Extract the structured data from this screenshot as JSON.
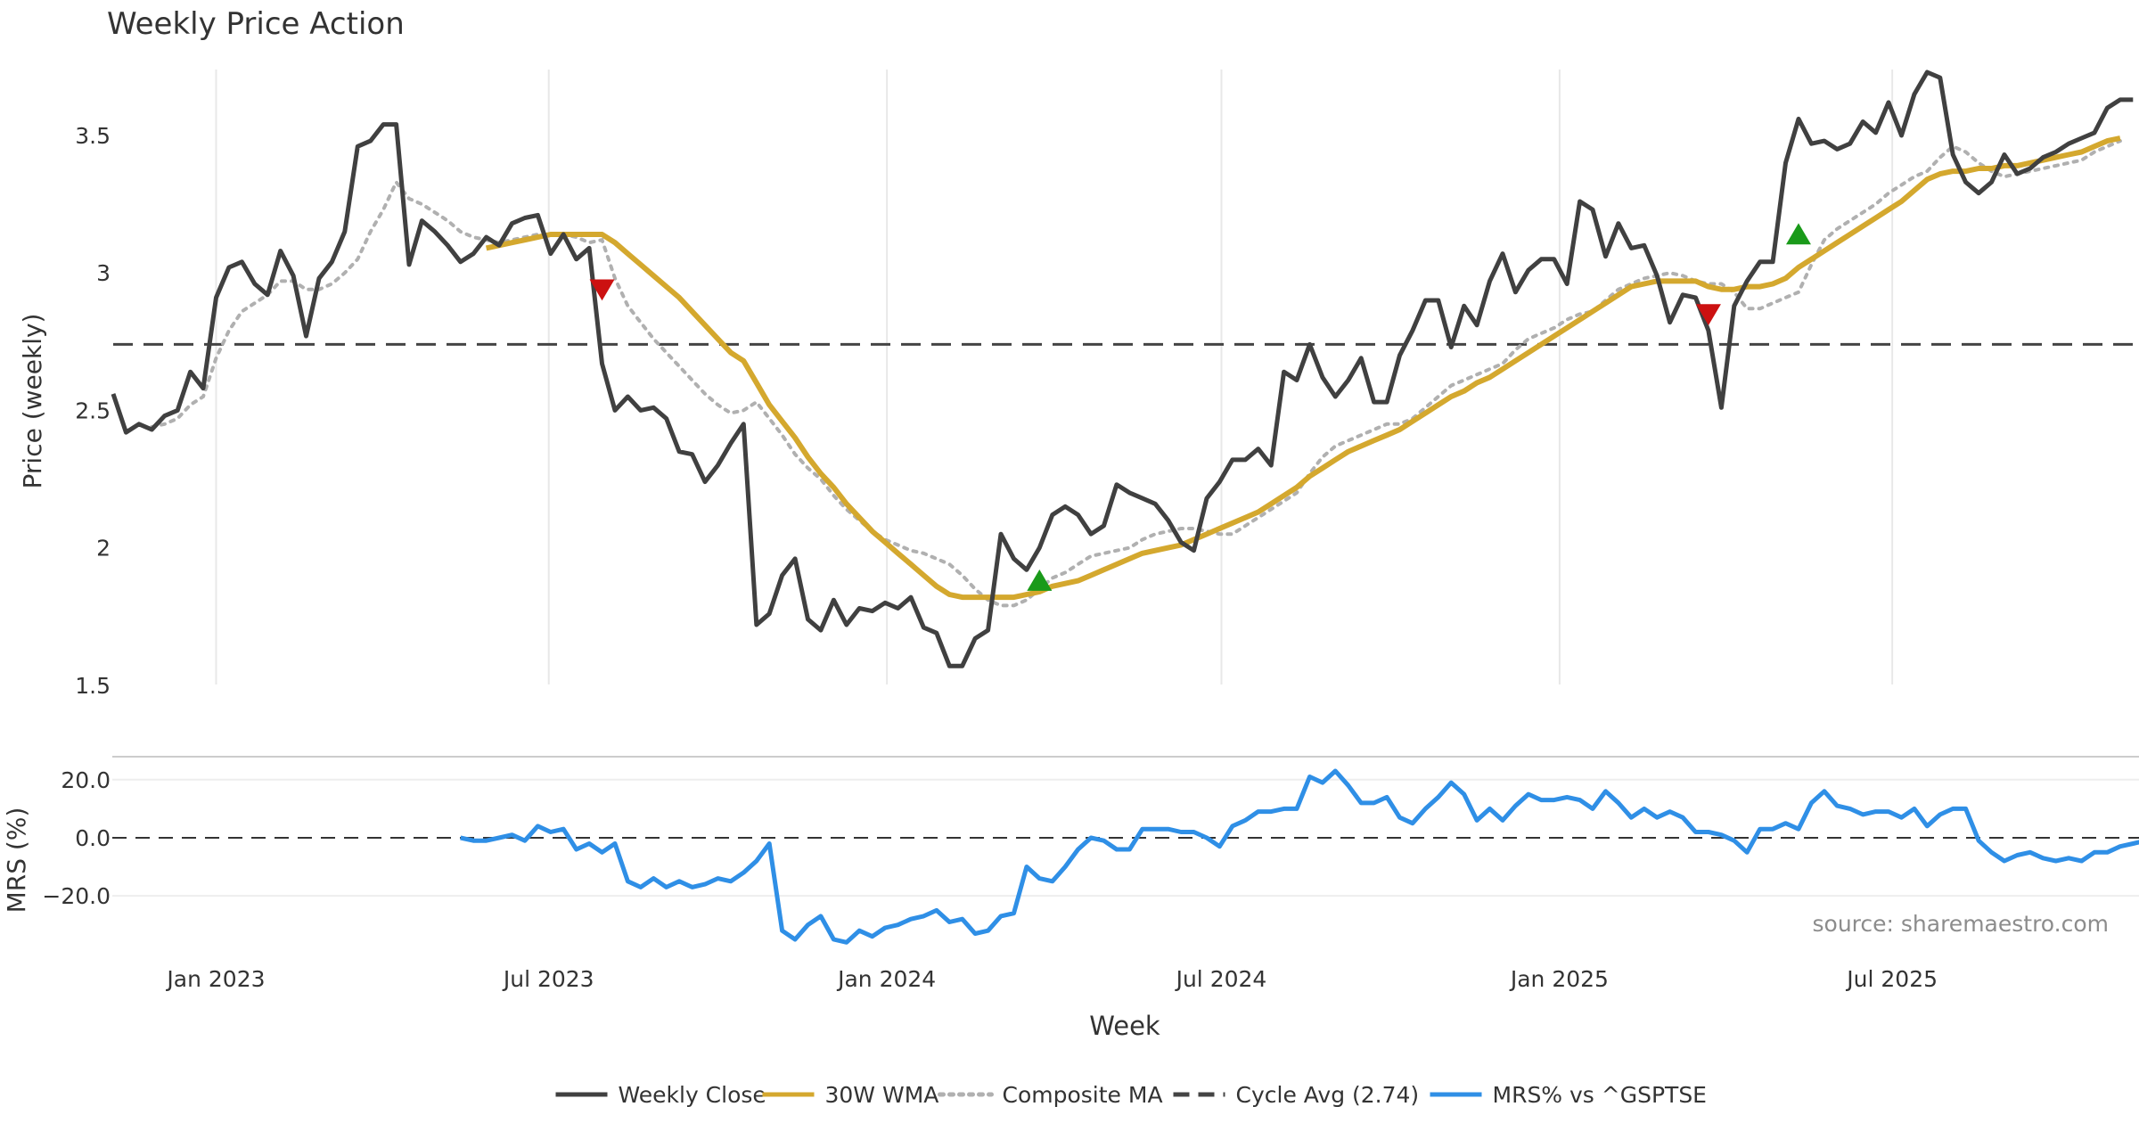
{
  "chart_data": {
    "type": "line",
    "title": "Weekly Price Action",
    "xlabel": "Week",
    "source_note": "source: sharemaestro.com",
    "x_ticks": [
      "Jan 2023",
      "Jul 2023",
      "Jan 2024",
      "Jul 2024",
      "Jan 2025",
      "Jul 2025"
    ],
    "legend_position": "bottom-center",
    "grid": "vertical",
    "price_panel": {
      "ylabel": "Price (weekly)",
      "ylim": [
        1.48,
        3.85
      ],
      "y_ticks": [
        "1.5",
        "2",
        "2.5",
        "3",
        "3.5"
      ],
      "x_start": "2022-11-06",
      "week_step": 7,
      "cycle_avg": 2.74,
      "series": [
        {
          "name": "Weekly Close",
          "color": "#404040",
          "values": [
            2.56,
            2.42,
            2.45,
            2.43,
            2.48,
            2.5,
            2.64,
            2.58,
            2.91,
            3.02,
            3.04,
            2.96,
            2.92,
            3.08,
            2.99,
            2.77,
            2.98,
            3.04,
            3.15,
            3.46,
            3.48,
            3.54,
            3.54,
            3.03,
            3.19,
            3.15,
            3.1,
            3.04,
            3.07,
            3.13,
            3.1,
            3.18,
            3.2,
            3.21,
            3.07,
            3.14,
            3.05,
            3.09,
            2.67,
            2.5,
            2.55,
            2.5,
            2.51,
            2.47,
            2.35,
            2.34,
            2.24,
            2.3,
            2.38,
            2.45,
            1.72,
            1.76,
            1.9,
            1.96,
            1.74,
            1.7,
            1.81,
            1.72,
            1.78,
            1.77,
            1.8,
            1.78,
            1.82,
            1.71,
            1.69,
            1.57,
            1.57,
            1.67,
            1.7,
            2.05,
            1.96,
            1.92,
            2.0,
            2.12,
            2.15,
            2.12,
            2.05,
            2.08,
            2.23,
            2.2,
            2.18,
            2.16,
            2.1,
            2.02,
            1.99,
            2.18,
            2.24,
            2.32,
            2.32,
            2.36,
            2.3,
            2.64,
            2.61,
            2.74,
            2.62,
            2.55,
            2.61,
            2.69,
            2.53,
            2.53,
            2.7,
            2.79,
            2.9,
            2.9,
            2.73,
            2.88,
            2.81,
            2.97,
            3.07,
            2.93,
            3.01,
            3.05,
            3.05,
            2.96,
            3.26,
            3.23,
            3.06,
            3.18,
            3.09,
            3.1,
            2.99,
            2.82,
            2.92,
            2.91,
            2.79,
            2.51,
            2.88,
            2.97,
            3.04,
            3.04,
            3.4,
            3.56,
            3.47,
            3.48,
            3.45,
            3.47,
            3.55,
            3.51,
            3.62,
            3.5,
            3.65,
            3.73,
            3.71,
            3.43,
            3.33,
            3.29,
            3.33,
            3.43,
            3.36,
            3.38,
            3.42,
            3.44,
            3.47,
            3.49,
            3.51,
            3.6,
            3.63,
            3.63
          ]
        },
        {
          "name": "30W WMA",
          "color": "#D4A82E",
          "start_index": 29,
          "values": [
            3.09,
            3.1,
            3.11,
            3.12,
            3.13,
            3.14,
            3.14,
            3.14,
            3.14,
            3.14,
            3.11,
            3.07,
            3.03,
            2.99,
            2.95,
            2.91,
            2.86,
            2.81,
            2.76,
            2.71,
            2.68,
            2.6,
            2.52,
            2.46,
            2.4,
            2.33,
            2.27,
            2.22,
            2.16,
            2.11,
            2.06,
            2.02,
            1.98,
            1.94,
            1.9,
            1.86,
            1.83,
            1.82,
            1.82,
            1.82,
            1.82,
            1.82,
            1.83,
            1.84,
            1.86,
            1.87,
            1.88,
            1.9,
            1.92,
            1.94,
            1.96,
            1.98,
            1.99,
            2.0,
            2.01,
            2.03,
            2.05,
            2.07,
            2.09,
            2.11,
            2.13,
            2.16,
            2.19,
            2.22,
            2.26,
            2.29,
            2.32,
            2.35,
            2.37,
            2.39,
            2.41,
            2.43,
            2.46,
            2.49,
            2.52,
            2.55,
            2.57,
            2.6,
            2.62,
            2.65,
            2.68,
            2.71,
            2.74,
            2.77,
            2.8,
            2.83,
            2.86,
            2.89,
            2.92,
            2.95,
            2.96,
            2.97,
            2.97,
            2.97,
            2.97,
            2.95,
            2.94,
            2.94,
            2.95,
            2.95,
            2.96,
            2.98,
            3.02,
            3.05,
            3.08,
            3.11,
            3.14,
            3.17,
            3.2,
            3.23,
            3.26,
            3.3,
            3.34,
            3.36,
            3.37,
            3.37,
            3.38,
            3.38,
            3.39,
            3.39,
            3.4,
            3.41,
            3.42,
            3.43,
            3.44,
            3.46,
            3.48,
            3.49
          ]
        },
        {
          "name": "Composite MA",
          "color": "#b0b0b0",
          "start_index": 3,
          "values": [
            2.44,
            2.45,
            2.47,
            2.52,
            2.55,
            2.69,
            2.79,
            2.86,
            2.89,
            2.92,
            2.97,
            2.97,
            2.94,
            2.94,
            2.96,
            3.0,
            3.05,
            3.15,
            3.23,
            3.33,
            3.27,
            3.25,
            3.22,
            3.19,
            3.15,
            3.13,
            3.12,
            3.11,
            3.12,
            3.13,
            3.14,
            3.14,
            3.14,
            3.13,
            3.11,
            3.12,
            2.98,
            2.88,
            2.82,
            2.76,
            2.71,
            2.66,
            2.61,
            2.56,
            2.52,
            2.49,
            2.5,
            2.53,
            2.47,
            2.41,
            2.34,
            2.29,
            2.25,
            2.19,
            2.14,
            2.1,
            2.06,
            2.03,
            2.01,
            1.99,
            1.98,
            1.96,
            1.94,
            1.9,
            1.85,
            1.81,
            1.79,
            1.79,
            1.81,
            1.85,
            1.89,
            1.91,
            1.94,
            1.97,
            1.98,
            1.99,
            2.0,
            2.03,
            2.05,
            2.06,
            2.07,
            2.07,
            2.06,
            2.05,
            2.05,
            2.08,
            2.11,
            2.14,
            2.17,
            2.2,
            2.27,
            2.33,
            2.37,
            2.39,
            2.41,
            2.43,
            2.45,
            2.45,
            2.47,
            2.51,
            2.55,
            2.59,
            2.61,
            2.63,
            2.65,
            2.67,
            2.72,
            2.76,
            2.78,
            2.8,
            2.83,
            2.85,
            2.86,
            2.9,
            2.94,
            2.96,
            2.98,
            2.99,
            3.0,
            2.99,
            2.97,
            2.96,
            2.96,
            2.93,
            2.87,
            2.87,
            2.89,
            2.91,
            2.93,
            3.03,
            3.12,
            3.16,
            3.19,
            3.22,
            3.25,
            3.29,
            3.32,
            3.35,
            3.37,
            3.42,
            3.46,
            3.44,
            3.4,
            3.37,
            3.35,
            3.36,
            3.37,
            3.38,
            3.39,
            3.4,
            3.41,
            3.44,
            3.46,
            3.48
          ]
        }
      ],
      "markers": [
        {
          "index": 38,
          "value": 2.94,
          "direction": "down",
          "color": "#cc1111"
        },
        {
          "index": 72,
          "value": 1.88,
          "direction": "up",
          "color": "#1a9a1a"
        },
        {
          "index": 124,
          "value": 2.85,
          "direction": "down",
          "color": "#cc1111"
        },
        {
          "index": 131,
          "value": 3.14,
          "direction": "up",
          "color": "#1a9a1a"
        }
      ]
    },
    "mrs_panel": {
      "ylabel": "MRS (%)",
      "ylim": [
        -35,
        27
      ],
      "y_ticks": [
        "20.0",
        "0.0",
        "−20.0"
      ],
      "series": [
        {
          "name": "MRS% vs ^GSPTSE",
          "color": "#2f8fe6",
          "start_index": 27,
          "values": [
            0,
            -1,
            -1,
            0,
            1,
            -1,
            4,
            2,
            3,
            -4,
            -2,
            -5,
            -2,
            -15,
            -17,
            -14,
            -17,
            -15,
            -17,
            -16,
            -14,
            -15,
            -12,
            -8,
            -2,
            -32,
            -35,
            -30,
            -27,
            -35,
            -36,
            -32,
            -34,
            -31,
            -30,
            -28,
            -27,
            -25,
            -29,
            -28,
            -33,
            -32,
            -27,
            -26,
            -10,
            -14,
            -15,
            -10,
            -4,
            0,
            -1,
            -4,
            -4,
            3,
            3,
            3,
            2,
            2,
            0,
            -3,
            4,
            6,
            9,
            9,
            10,
            10,
            21,
            19,
            23,
            18,
            12,
            12,
            14,
            7,
            5,
            10,
            14,
            19,
            15,
            6,
            10,
            6,
            11,
            15,
            13,
            13,
            14,
            13,
            10,
            16,
            12,
            7,
            10,
            7,
            9,
            7,
            2,
            2,
            1,
            -1,
            -5,
            3,
            3,
            5,
            3,
            12,
            16,
            11,
            10,
            8,
            9,
            9,
            7,
            10,
            4,
            8,
            10,
            10,
            -1,
            -5,
            -8,
            -6,
            -5,
            -7,
            -8,
            -7,
            -8,
            -5,
            -5,
            -3,
            -2,
            -1
          ]
        }
      ]
    },
    "legend": [
      {
        "label": "Weekly Close",
        "style": "solid",
        "color": "#404040"
      },
      {
        "label": "30W WMA",
        "style": "solid",
        "color": "#D4A82E"
      },
      {
        "label": "Composite MA",
        "style": "dotted",
        "color": "#b0b0b0"
      },
      {
        "label": "Cycle Avg (2.74)",
        "style": "dashed",
        "color": "#444444"
      },
      {
        "label": "MRS% vs ^GSPTSE",
        "style": "solid",
        "color": "#2f8fe6"
      }
    ]
  }
}
